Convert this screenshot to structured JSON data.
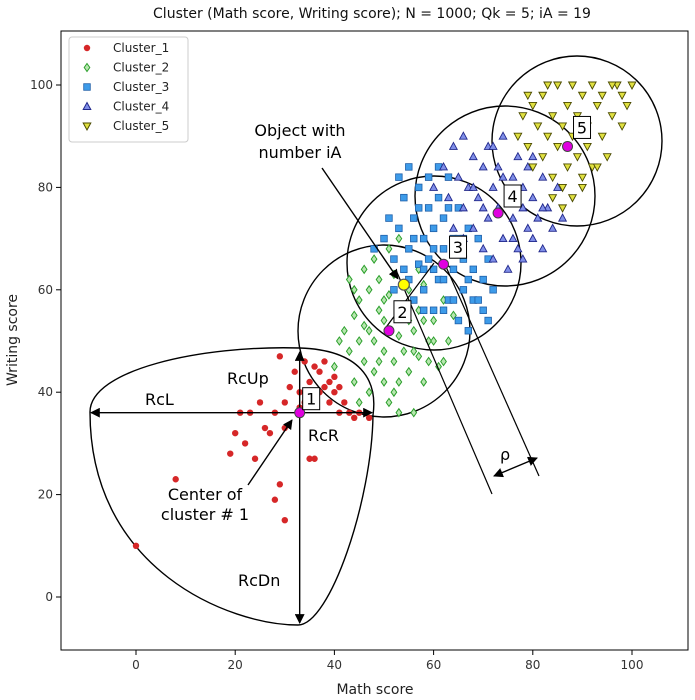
{
  "chart_data": {
    "type": "scatter",
    "title": "Cluster (Math score, Writing score); N = 1000; Qk = 5; iA = 19",
    "xlabel": "Math score",
    "ylabel": "Writing score",
    "xlim": [
      -15,
      112
    ],
    "ylim": [
      -10,
      111
    ],
    "xticks": [
      0,
      20,
      40,
      60,
      80,
      100
    ],
    "yticks": [
      0,
      20,
      40,
      60,
      80,
      100
    ],
    "legend_position": "top-left",
    "series": [
      {
        "name": "Cluster_1",
        "marker": "circle",
        "color": "#d62728",
        "points": [
          [
            0,
            10
          ],
          [
            8,
            23
          ],
          [
            19,
            28
          ],
          [
            20,
            32
          ],
          [
            21,
            36
          ],
          [
            22,
            30
          ],
          [
            23,
            36
          ],
          [
            24,
            27
          ],
          [
            25,
            38
          ],
          [
            26,
            33
          ],
          [
            27,
            32
          ],
          [
            28,
            19
          ],
          [
            28,
            36
          ],
          [
            29,
            22
          ],
          [
            30,
            15
          ],
          [
            30,
            38
          ],
          [
            31,
            41
          ],
          [
            32,
            44
          ],
          [
            33,
            40
          ],
          [
            34,
            46
          ],
          [
            34,
            38
          ],
          [
            35,
            42
          ],
          [
            35,
            27
          ],
          [
            36,
            45
          ],
          [
            36,
            27
          ],
          [
            37,
            44
          ],
          [
            37,
            40
          ],
          [
            38,
            46
          ],
          [
            38,
            41
          ],
          [
            39,
            42
          ],
          [
            39,
            38
          ],
          [
            40,
            43
          ],
          [
            40,
            40
          ],
          [
            41,
            41
          ],
          [
            41,
            36
          ],
          [
            42,
            38
          ],
          [
            43,
            36
          ],
          [
            44,
            35
          ],
          [
            45,
            36
          ],
          [
            47,
            35
          ],
          [
            29,
            47
          ],
          [
            30,
            33
          ],
          [
            33,
            37
          ]
        ]
      },
      {
        "name": "Cluster_2",
        "marker": "diamond",
        "color": "#2ca02c",
        "points": [
          [
            40,
            45
          ],
          [
            42,
            52
          ],
          [
            43,
            48
          ],
          [
            44,
            55
          ],
          [
            44,
            42
          ],
          [
            45,
            50
          ],
          [
            45,
            58
          ],
          [
            46,
            46
          ],
          [
            46,
            53
          ],
          [
            47,
            40
          ],
          [
            47,
            60
          ],
          [
            48,
            50
          ],
          [
            48,
            44
          ],
          [
            49,
            56
          ],
          [
            49,
            62
          ],
          [
            50,
            48
          ],
          [
            50,
            42
          ],
          [
            50,
            54
          ],
          [
            51,
            59
          ],
          [
            51,
            38
          ],
          [
            52,
            46
          ],
          [
            52,
            63
          ],
          [
            53,
            51
          ],
          [
            53,
            42
          ],
          [
            54,
            57
          ],
          [
            54,
            48
          ],
          [
            55,
            60
          ],
          [
            55,
            44
          ],
          [
            56,
            52
          ],
          [
            56,
            36
          ],
          [
            57,
            56
          ],
          [
            57,
            47
          ],
          [
            58,
            61
          ],
          [
            58,
            42
          ],
          [
            59,
            50
          ],
          [
            60,
            54
          ],
          [
            61,
            45
          ],
          [
            62,
            58
          ],
          [
            63,
            50
          ],
          [
            43,
            62
          ],
          [
            46,
            64
          ],
          [
            48,
            66
          ],
          [
            51,
            68
          ],
          [
            53,
            70
          ],
          [
            45,
            38
          ],
          [
            49,
            46
          ],
          [
            52,
            40
          ],
          [
            55,
            54
          ],
          [
            57,
            64
          ],
          [
            59,
            46
          ],
          [
            41,
            50
          ],
          [
            44,
            60
          ],
          [
            47,
            52
          ],
          [
            50,
            58
          ],
          [
            53,
            36
          ],
          [
            56,
            48
          ],
          [
            58,
            54
          ],
          [
            60,
            50
          ],
          [
            62,
            46
          ],
          [
            64,
            55
          ]
        ]
      },
      {
        "name": "Cluster_3",
        "marker": "square",
        "color": "#1f77b4",
        "points": [
          [
            48,
            68
          ],
          [
            50,
            70
          ],
          [
            51,
            74
          ],
          [
            52,
            66
          ],
          [
            53,
            72
          ],
          [
            54,
            78
          ],
          [
            55,
            62
          ],
          [
            55,
            68
          ],
          [
            56,
            74
          ],
          [
            57,
            65
          ],
          [
            57,
            80
          ],
          [
            58,
            70
          ],
          [
            58,
            60
          ],
          [
            59,
            76
          ],
          [
            59,
            66
          ],
          [
            60,
            72
          ],
          [
            60,
            56
          ],
          [
            61,
            78
          ],
          [
            61,
            62
          ],
          [
            62,
            68
          ],
          [
            62,
            74
          ],
          [
            63,
            58
          ],
          [
            63,
            82
          ],
          [
            64,
            64
          ],
          [
            64,
            70
          ],
          [
            65,
            76
          ],
          [
            65,
            54
          ],
          [
            66,
            66
          ],
          [
            66,
            60
          ],
          [
            67,
            72
          ],
          [
            67,
            52
          ],
          [
            68,
            64
          ],
          [
            68,
            58
          ],
          [
            69,
            70
          ],
          [
            70,
            62
          ],
          [
            70,
            56
          ],
          [
            71,
            66
          ],
          [
            72,
            60
          ],
          [
            56,
            58
          ],
          [
            58,
            64
          ],
          [
            60,
            68
          ],
          [
            62,
            62
          ],
          [
            64,
            58
          ],
          [
            66,
            70
          ],
          [
            52,
            60
          ],
          [
            54,
            64
          ],
          [
            56,
            70
          ],
          [
            58,
            56
          ],
          [
            60,
            64
          ],
          [
            62,
            56
          ],
          [
            53,
            82
          ],
          [
            55,
            84
          ],
          [
            57,
            76
          ],
          [
            59,
            82
          ],
          [
            61,
            84
          ],
          [
            63,
            76
          ],
          [
            65,
            70
          ],
          [
            67,
            62
          ],
          [
            69,
            58
          ],
          [
            71,
            54
          ]
        ]
      },
      {
        "name": "Cluster_4",
        "marker": "triangle-up",
        "color": "#3a47c8",
        "points": [
          [
            60,
            80
          ],
          [
            62,
            84
          ],
          [
            63,
            78
          ],
          [
            64,
            88
          ],
          [
            65,
            82
          ],
          [
            66,
            76
          ],
          [
            66,
            90
          ],
          [
            67,
            80
          ],
          [
            68,
            86
          ],
          [
            68,
            72
          ],
          [
            69,
            78
          ],
          [
            70,
            84
          ],
          [
            70,
            68
          ],
          [
            71,
            74
          ],
          [
            71,
            88
          ],
          [
            72,
            80
          ],
          [
            72,
            66
          ],
          [
            73,
            76
          ],
          [
            73,
            84
          ],
          [
            74,
            70
          ],
          [
            74,
            90
          ],
          [
            75,
            78
          ],
          [
            75,
            64
          ],
          [
            76,
            82
          ],
          [
            76,
            74
          ],
          [
            77,
            68
          ],
          [
            77,
            86
          ],
          [
            78,
            76
          ],
          [
            78,
            80
          ],
          [
            79,
            72
          ],
          [
            79,
            84
          ],
          [
            80,
            70
          ],
          [
            80,
            78
          ],
          [
            81,
            74
          ],
          [
            82,
            82
          ],
          [
            82,
            68
          ],
          [
            83,
            76
          ],
          [
            84,
            72
          ],
          [
            85,
            80
          ],
          [
            86,
            74
          ],
          [
            64,
            72
          ],
          [
            66,
            70
          ],
          [
            68,
            80
          ],
          [
            70,
            76
          ],
          [
            72,
            88
          ],
          [
            74,
            82
          ],
          [
            76,
            70
          ],
          [
            78,
            66
          ],
          [
            80,
            86
          ],
          [
            82,
            76
          ]
        ]
      },
      {
        "name": "Cluster_5",
        "marker": "triangle-down",
        "color": "#bcbd22",
        "points": [
          [
            77,
            90
          ],
          [
            78,
            94
          ],
          [
            79,
            88
          ],
          [
            80,
            96
          ],
          [
            81,
            92
          ],
          [
            82,
            86
          ],
          [
            82,
            98
          ],
          [
            83,
            90
          ],
          [
            84,
            94
          ],
          [
            84,
            82
          ],
          [
            85,
            100
          ],
          [
            85,
            88
          ],
          [
            86,
            92
          ],
          [
            86,
            80
          ],
          [
            87,
            96
          ],
          [
            87,
            84
          ],
          [
            88,
            90
          ],
          [
            88,
            100
          ],
          [
            89,
            86
          ],
          [
            89,
            94
          ],
          [
            90,
            98
          ],
          [
            90,
            82
          ],
          [
            91,
            92
          ],
          [
            91,
            88
          ],
          [
            92,
            100
          ],
          [
            92,
            84
          ],
          [
            93,
            96
          ],
          [
            94,
            90
          ],
          [
            94,
            98
          ],
          [
            95,
            86
          ],
          [
            96,
            94
          ],
          [
            97,
            100
          ],
          [
            98,
            92
          ],
          [
            99,
            96
          ],
          [
            100,
            100
          ],
          [
            88,
            78
          ],
          [
            86,
            76
          ],
          [
            90,
            80
          ],
          [
            93,
            84
          ],
          [
            84,
            78
          ],
          [
            80,
            84
          ],
          [
            79,
            98
          ],
          [
            83,
            100
          ],
          [
            96,
            100
          ],
          [
            98,
            98
          ]
        ]
      }
    ],
    "cluster_centers": [
      {
        "label": "1",
        "x": 33,
        "y": 36
      },
      {
        "label": "2",
        "x": 51,
        "y": 52
      },
      {
        "label": "3",
        "x": 62,
        "y": 65
      },
      {
        "label": "4",
        "x": 73,
        "y": 75
      },
      {
        "label": "5",
        "x": 87,
        "y": 88
      }
    ],
    "object_iA": {
      "x": 54,
      "y": 61
    },
    "annotations": {
      "object_label": [
        "Object with",
        "number iA"
      ],
      "center_label": [
        "Center of",
        "cluster # 1"
      ],
      "rcl": "RcL",
      "rcr": "RcR",
      "rcup": "RcUp",
      "rcdn": "RcDn",
      "rho": "ρ"
    }
  }
}
